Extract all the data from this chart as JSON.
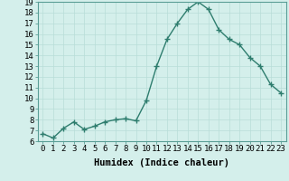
{
  "x": [
    0,
    1,
    2,
    3,
    4,
    5,
    6,
    7,
    8,
    9,
    10,
    11,
    12,
    13,
    14,
    15,
    16,
    17,
    18,
    19,
    20,
    21,
    22,
    23
  ],
  "y": [
    6.7,
    6.3,
    7.2,
    7.8,
    7.1,
    7.4,
    7.8,
    8.0,
    8.1,
    7.9,
    9.8,
    13.0,
    15.5,
    17.0,
    18.3,
    19.0,
    18.3,
    16.4,
    15.5,
    15.0,
    13.8,
    13.0,
    11.3,
    10.5
  ],
  "xlabel": "Humidex (Indice chaleur)",
  "line_color": "#2e7d6e",
  "marker": "+",
  "background_color": "#d4efeb",
  "grid_color": "#b8ddd8",
  "ylim": [
    6,
    19
  ],
  "xlim_min": -0.5,
  "xlim_max": 23.5,
  "yticks": [
    6,
    7,
    8,
    9,
    10,
    11,
    12,
    13,
    14,
    15,
    16,
    17,
    18,
    19
  ],
  "xlabel_fontsize": 7.5,
  "tick_fontsize": 6.5,
  "linewidth": 1.0,
  "markersize": 4,
  "markeredgewidth": 1.0
}
